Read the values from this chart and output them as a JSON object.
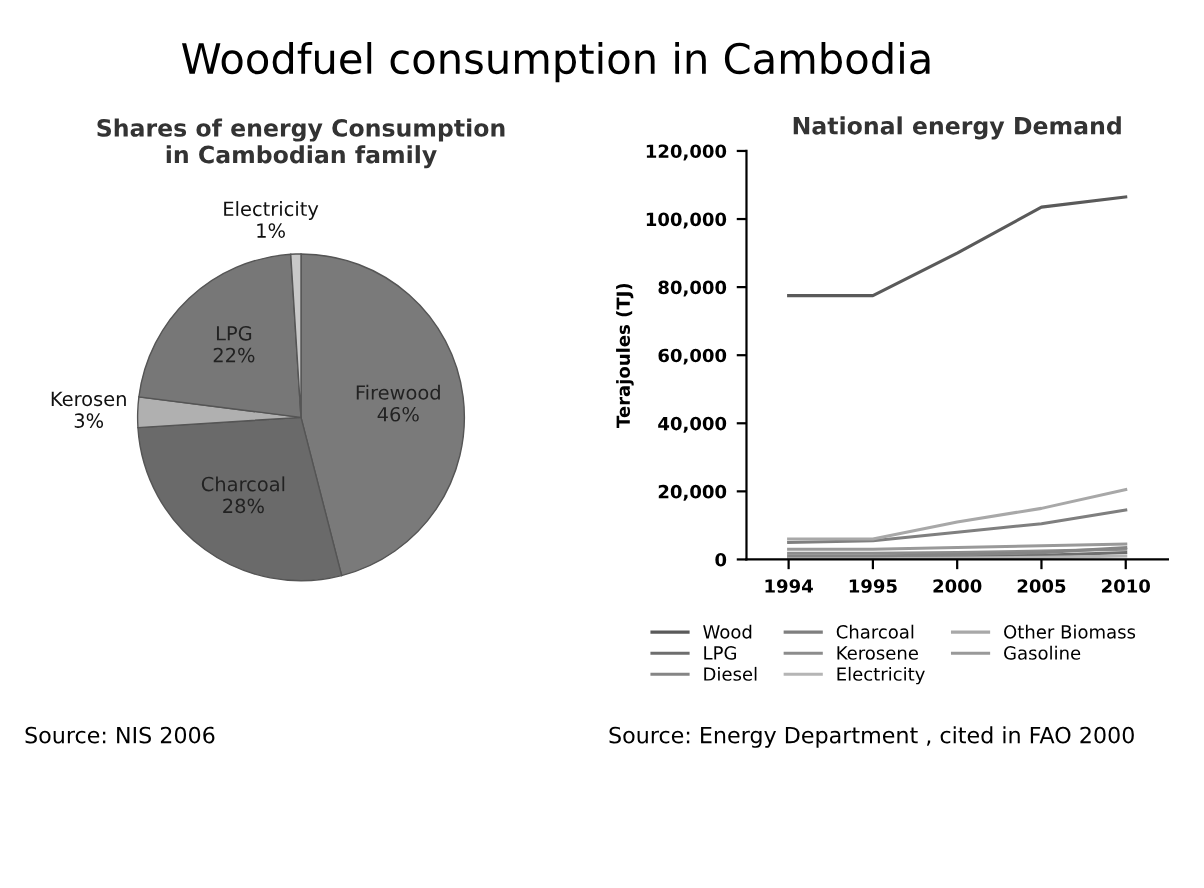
{
  "chart_data": [
    {
      "type": "pie",
      "title": "Shares of energy Consumption\nin Cambodian family",
      "categories": [
        "Firewood",
        "Charcoal",
        "Kerosen",
        "LPG",
        "Electricity"
      ],
      "values": [
        46,
        28,
        3,
        22,
        1
      ],
      "colors": [
        "#7a7a7a",
        "#6a6a6a",
        "#b0b0b0",
        "#777777",
        "#c8c8c8"
      ],
      "value_labels": [
        "46%",
        "28%",
        "3%",
        "22%",
        "1%"
      ],
      "annotations": [
        "Woodfuel consumption in Cambodia",
        "Source: NIS 2006"
      ]
    },
    {
      "type": "line",
      "title": "National energy Demand",
      "ylabel": "Terajoules (TJ)",
      "categories": [
        "1994",
        "1995",
        "2000",
        "2005",
        "2010"
      ],
      "ylim": [
        0,
        120000
      ],
      "yticks": [
        0,
        {
          "value": 20000,
          "label": "20,000"
        },
        {
          "value": 40000,
          "label": "40,000"
        },
        {
          "value": 60000,
          "label": "60,000"
        },
        {
          "value": 80000,
          "label": "80,000"
        },
        {
          "value": 100000,
          "label": "100,000"
        },
        {
          "value": 120000,
          "label": "120,000"
        }
      ],
      "legend": "bottom",
      "grid": false,
      "marker": "none",
      "line_style": "solid",
      "series": [
        {
          "name": "Wood",
          "color": "#5a5a5a",
          "values": [
            77500,
            77500,
            90000,
            103500,
            106500
          ]
        },
        {
          "name": "Charcoal",
          "color": "#7f7f7f",
          "values": [
            5000,
            5500,
            8000,
            10500,
            14500
          ]
        },
        {
          "name": "Other Biomass",
          "color": "#a8a8a8",
          "values": [
            6000,
            6000,
            11000,
            15000,
            20500
          ]
        },
        {
          "name": "LPG",
          "color": "#6e6e6e",
          "values": [
            300,
            400,
            700,
            1200,
            2000
          ]
        },
        {
          "name": "Kerosene",
          "color": "#8c8c8c",
          "values": [
            1800,
            1800,
            2000,
            2500,
            3000
          ]
        },
        {
          "name": "Gasoline",
          "color": "#999999",
          "values": [
            3000,
            3000,
            3500,
            4000,
            4500
          ]
        },
        {
          "name": "Diesel",
          "color": "#858585",
          "values": [
            1000,
            1000,
            1400,
            2000,
            3500
          ]
        },
        {
          "name": "Electricity",
          "color": "#b5b5b5",
          "values": [
            200,
            200,
            400,
            600,
            1000
          ]
        }
      ],
      "annotations": [
        "Source: Energy Department , cited in FAO 2000"
      ]
    }
  ]
}
